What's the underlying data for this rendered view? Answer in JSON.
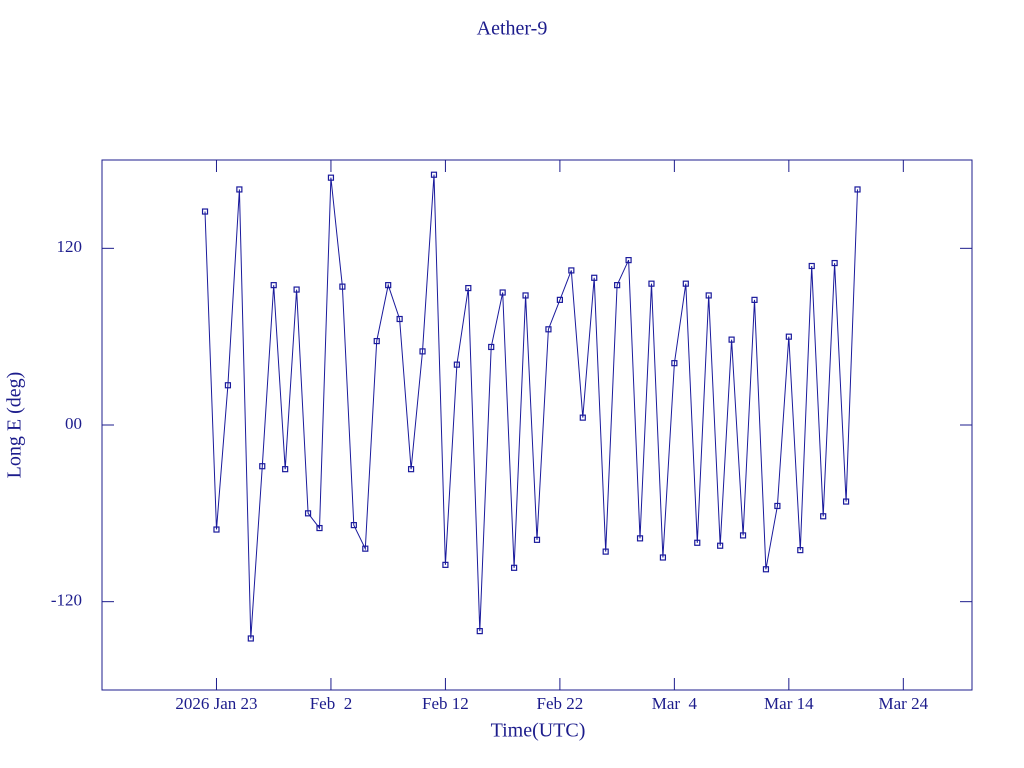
{
  "chart_data": {
    "type": "line",
    "title": "Aether-9",
    "x_label": "Time(UTC)",
    "y_label": "Long E (deg)",
    "color": "#1a1a9c",
    "xlim": [
      "2026-01-13",
      "2026-03-30"
    ],
    "xticks": [
      {
        "value": "2026-01-23",
        "label": "2026 Jan 23"
      },
      {
        "value": "2026-02-02",
        "label": "Feb  2"
      },
      {
        "value": "2026-02-12",
        "label": "Feb 12"
      },
      {
        "value": "2026-02-22",
        "label": "Feb 22"
      },
      {
        "value": "2026-03-04",
        "label": "Mar  4"
      },
      {
        "value": "2026-03-14",
        "label": "Mar 14"
      },
      {
        "value": "2026-03-24",
        "label": "Mar 24"
      }
    ],
    "ylim": [
      -180,
      180
    ],
    "yticks": [
      -120,
      {
        "value": 0,
        "label": "00"
      },
      120
    ],
    "x": [
      "2026-01-22",
      "2026-01-23",
      "2026-01-24",
      "2026-01-25",
      "2026-01-26",
      "2026-01-27",
      "2026-01-28",
      "2026-01-29",
      "2026-01-30",
      "2026-01-31",
      "2026-02-01",
      "2026-02-02",
      "2026-02-03",
      "2026-02-04",
      "2026-02-05",
      "2026-02-06",
      "2026-02-07",
      "2026-02-08",
      "2026-02-09",
      "2026-02-10",
      "2026-02-11",
      "2026-02-12",
      "2026-02-13",
      "2026-02-14",
      "2026-02-15",
      "2026-02-16",
      "2026-02-17",
      "2026-02-18",
      "2026-02-19",
      "2026-02-20",
      "2026-02-21",
      "2026-02-22",
      "2026-02-23",
      "2026-02-24",
      "2026-02-25",
      "2026-02-26",
      "2026-02-27",
      "2026-02-28",
      "2026-03-01",
      "2026-03-02",
      "2026-03-03",
      "2026-03-04",
      "2026-03-05",
      "2026-03-06",
      "2026-03-07",
      "2026-03-08",
      "2026-03-09",
      "2026-03-10",
      "2026-03-11",
      "2026-03-12",
      "2026-03-13",
      "2026-03-14",
      "2026-03-15",
      "2026-03-16",
      "2026-03-17",
      "2026-03-18",
      "2026-03-19",
      "2026-03-20"
    ],
    "values": [
      145,
      -71,
      27,
      160,
      -145,
      -28,
      95,
      -30,
      92,
      -60,
      -70,
      168,
      94,
      -68,
      -84,
      57,
      95,
      72,
      -30,
      50,
      170,
      -95,
      41,
      93,
      -140,
      53,
      90,
      -97,
      88,
      -78,
      65,
      85,
      105,
      5,
      100,
      -86,
      95,
      112,
      -77,
      96,
      -90,
      42,
      96,
      -80,
      88,
      -82,
      58,
      -75,
      85,
      -98,
      -55,
      60,
      -85,
      108,
      -62,
      110,
      -52,
      160
    ]
  }
}
